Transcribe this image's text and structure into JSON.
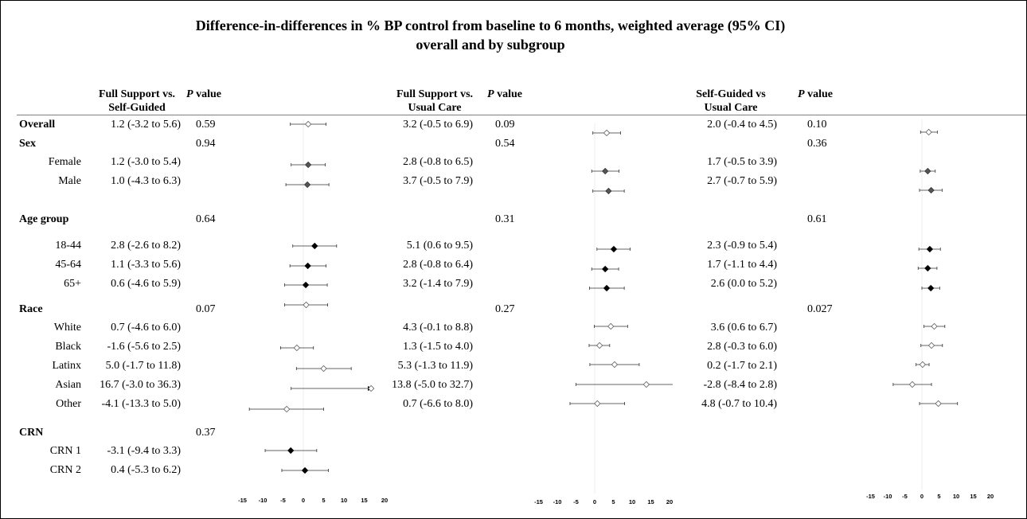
{
  "title_line1": "Difference-in-differences in % BP control from baseline to 6 months, weighted average (95% CI)",
  "title_line2": "overall and by subgroup",
  "columns": [
    {
      "header_line1": "Full Support vs.",
      "header_line2": "Self-Guided"
    },
    {
      "header_line1": "Full Support vs.",
      "header_line2": "Usual Care"
    },
    {
      "header_line1": "Self-Guided vs",
      "header_line2": "Usual Care"
    }
  ],
  "pvalue_header": {
    "italic": "P",
    "rest": " value"
  },
  "rows": [
    {
      "label": "Overall",
      "bold": true,
      "indent": false,
      "est": [
        "1.2 (-3.2 to 5.6)",
        "3.2 (-0.5 to 6.9)",
        "2.0 (-0.4  to 4.5)"
      ],
      "p": [
        "0.59",
        "0.09",
        "0.10"
      ]
    },
    {
      "label": "Sex",
      "bold": true,
      "indent": false,
      "est": [
        "",
        "",
        ""
      ],
      "p": [
        "0.94",
        "0.54",
        "0.36"
      ]
    },
    {
      "label": "Female",
      "bold": false,
      "indent": true,
      "est": [
        "1.2 (-3.0 to 5.4)",
        "2.8 (-0.8 to 6.5)",
        "1.7 (-0.5  to 3.9)"
      ],
      "p": [
        "",
        "",
        ""
      ]
    },
    {
      "label": "Male",
      "bold": false,
      "indent": true,
      "est": [
        "1.0 (-4.3 to 6.3)",
        "3.7 (-0.5 to 7.9)",
        "2.7 (-0.7  to 5.9)"
      ],
      "p": [
        "",
        "",
        ""
      ]
    },
    {
      "label": "Age group",
      "bold": true,
      "indent": false,
      "est": [
        "",
        "",
        ""
      ],
      "p": [
        "0.64",
        "0.31",
        "0.61"
      ]
    },
    {
      "label": "18-44",
      "bold": false,
      "indent": true,
      "est": [
        "2.8 (-2.6 to 8.2)",
        "5.1 (0.6 to 9.5)",
        "2.3 (-0.9  to 5.4)"
      ],
      "p": [
        "",
        "",
        ""
      ]
    },
    {
      "label": "45-64",
      "bold": false,
      "indent": true,
      "est": [
        "1.1 (-3.3 to 5.6)",
        "2.8 (-0.8 to 6.4)",
        "1.7 (-1.1  to 4.4)"
      ],
      "p": [
        "",
        "",
        ""
      ]
    },
    {
      "label": "65+",
      "bold": false,
      "indent": true,
      "est": [
        "0.6 (-4.6 to 5.9)",
        "3.2 (-1.4  to 7.9)",
        "2.6 (0.0  to 5.2)"
      ],
      "p": [
        "",
        "",
        ""
      ]
    },
    {
      "label": "Race",
      "bold": true,
      "indent": false,
      "est": [
        "",
        "",
        ""
      ],
      "p": [
        "0.07",
        "0.27",
        "0.027"
      ]
    },
    {
      "label": "White",
      "bold": false,
      "indent": true,
      "est": [
        "0.7 (-4.6 to 6.0)",
        "4.3 (-0.1  to 8.8)",
        "3.6 (0.6  to 6.7)"
      ],
      "p": [
        "",
        "",
        ""
      ]
    },
    {
      "label": "Black",
      "bold": false,
      "indent": true,
      "est": [
        "-1.6 (-5.6 to 2.5)",
        "1.3 (-1.5  to 4.0)",
        "2.8 (-0.3  to 6.0)"
      ],
      "p": [
        "",
        "",
        ""
      ]
    },
    {
      "label": "Latinx",
      "bold": false,
      "indent": true,
      "est": [
        "5.0 (-1.7 to 11.8)",
        "5.3 (-1.3  to 11.9)",
        "0.2 (-1.7  to 2.1)"
      ],
      "p": [
        "",
        "",
        ""
      ]
    },
    {
      "label": "Asian",
      "bold": false,
      "indent": true,
      "est": [
        "16.7 (-3.0 to 36.3)",
        "13.8 (-5.0 to 32.7)",
        "-2.8 (-8.4  to 2.8)"
      ],
      "p": [
        "",
        "",
        ""
      ]
    },
    {
      "label": "Other",
      "bold": false,
      "indent": true,
      "est": [
        "-4.1 (-13.3 to 5.0)",
        "0.7 (-6.6  to 8.0)",
        "4.8 (-0.7  to 10.4)"
      ],
      "p": [
        "",
        "",
        ""
      ]
    },
    {
      "label": "CRN",
      "bold": true,
      "indent": false,
      "est": [
        "",
        "",
        ""
      ],
      "p": [
        "0.37",
        "",
        ""
      ]
    },
    {
      "label": "CRN 1",
      "bold": false,
      "indent": true,
      "est": [
        "-3.1 (-9.4 to 3.3)",
        "",
        ""
      ],
      "p": [
        "",
        "",
        ""
      ]
    },
    {
      "label": "CRN 2",
      "bold": false,
      "indent": true,
      "est": [
        "0.4 (-5.3 to 6.2)",
        "",
        ""
      ],
      "p": [
        "",
        "",
        ""
      ]
    }
  ],
  "chart_data": [
    {
      "type": "forest",
      "comparison": "Full Support vs. Self-Guided",
      "xlim": [
        -15,
        20
      ],
      "xticks": [
        -15,
        -10,
        -5,
        0,
        5,
        10,
        15,
        20
      ],
      "points": [
        {
          "group": "Overall",
          "est": 1.2,
          "lo": -3.2,
          "hi": 5.6,
          "marker": "open"
        },
        {
          "group": "Female",
          "est": 1.2,
          "lo": -3.0,
          "hi": 5.4,
          "marker": "gray"
        },
        {
          "group": "Male",
          "est": 1.0,
          "lo": -4.3,
          "hi": 6.3,
          "marker": "gray"
        },
        {
          "group": "18-44",
          "est": 2.8,
          "lo": -2.6,
          "hi": 8.2,
          "marker": "filled"
        },
        {
          "group": "45-64",
          "est": 1.1,
          "lo": -3.3,
          "hi": 5.6,
          "marker": "filled"
        },
        {
          "group": "65+",
          "est": 0.6,
          "lo": -4.6,
          "hi": 5.9,
          "marker": "filled"
        },
        {
          "group": "White",
          "est": 0.7,
          "lo": -4.6,
          "hi": 6.0,
          "marker": "open"
        },
        {
          "group": "Black",
          "est": -1.6,
          "lo": -5.6,
          "hi": 2.5,
          "marker": "open"
        },
        {
          "group": "Latinx",
          "est": 5.0,
          "lo": -1.7,
          "hi": 11.8,
          "marker": "open"
        },
        {
          "group": "Asian",
          "est": 16.7,
          "lo": -3.0,
          "hi": 36.3,
          "marker": "open",
          "arrow": true
        },
        {
          "group": "Other",
          "est": -4.1,
          "lo": -13.3,
          "hi": 5.0,
          "marker": "open"
        },
        {
          "group": "CRN 1",
          "est": -3.1,
          "lo": -9.4,
          "hi": 3.3,
          "marker": "filled"
        },
        {
          "group": "CRN 2",
          "est": 0.4,
          "lo": -5.3,
          "hi": 6.2,
          "marker": "filled"
        }
      ]
    },
    {
      "type": "forest",
      "comparison": "Full Support vs. Usual Care",
      "xlim": [
        -15,
        20
      ],
      "xticks": [
        -15,
        -10,
        -5,
        0,
        5,
        10,
        15,
        20
      ],
      "points": [
        {
          "group": "Overall",
          "est": 3.2,
          "lo": -0.5,
          "hi": 6.9,
          "marker": "open"
        },
        {
          "group": "Female",
          "est": 2.8,
          "lo": -0.8,
          "hi": 6.5,
          "marker": "gray"
        },
        {
          "group": "Male",
          "est": 3.7,
          "lo": -0.5,
          "hi": 7.9,
          "marker": "gray"
        },
        {
          "group": "18-44",
          "est": 5.1,
          "lo": 0.6,
          "hi": 9.5,
          "marker": "filled"
        },
        {
          "group": "45-64",
          "est": 2.8,
          "lo": -0.8,
          "hi": 6.4,
          "marker": "filled"
        },
        {
          "group": "65+",
          "est": 3.2,
          "lo": -1.4,
          "hi": 7.9,
          "marker": "filled"
        },
        {
          "group": "White",
          "est": 4.3,
          "lo": -0.1,
          "hi": 8.8,
          "marker": "open"
        },
        {
          "group": "Black",
          "est": 1.3,
          "lo": -1.5,
          "hi": 4.0,
          "marker": "open"
        },
        {
          "group": "Latinx",
          "est": 5.3,
          "lo": -1.3,
          "hi": 11.9,
          "marker": "open"
        },
        {
          "group": "Asian",
          "est": 13.8,
          "lo": -5.0,
          "hi": 32.7,
          "marker": "open"
        },
        {
          "group": "Other",
          "est": 0.7,
          "lo": -6.6,
          "hi": 8.0,
          "marker": "open"
        }
      ]
    },
    {
      "type": "forest",
      "comparison": "Self-Guided vs Usual Care",
      "xlim": [
        -15,
        20
      ],
      "xticks": [
        -15,
        -10,
        -5,
        0,
        5,
        10,
        15,
        20
      ],
      "points": [
        {
          "group": "Overall",
          "est": 2.0,
          "lo": -0.4,
          "hi": 4.5,
          "marker": "open"
        },
        {
          "group": "Female",
          "est": 1.7,
          "lo": -0.5,
          "hi": 3.9,
          "marker": "gray"
        },
        {
          "group": "Male",
          "est": 2.7,
          "lo": -0.7,
          "hi": 5.9,
          "marker": "gray"
        },
        {
          "group": "18-44",
          "est": 2.3,
          "lo": -0.9,
          "hi": 5.4,
          "marker": "filled"
        },
        {
          "group": "45-64",
          "est": 1.7,
          "lo": -1.1,
          "hi": 4.4,
          "marker": "filled"
        },
        {
          "group": "65+",
          "est": 2.6,
          "lo": 0.0,
          "hi": 5.2,
          "marker": "filled"
        },
        {
          "group": "White",
          "est": 3.6,
          "lo": 0.6,
          "hi": 6.7,
          "marker": "open"
        },
        {
          "group": "Black",
          "est": 2.8,
          "lo": -0.3,
          "hi": 6.0,
          "marker": "open"
        },
        {
          "group": "Latinx",
          "est": 0.2,
          "lo": -1.7,
          "hi": 2.1,
          "marker": "open"
        },
        {
          "group": "Asian",
          "est": -2.8,
          "lo": -8.4,
          "hi": 2.8,
          "marker": "open"
        },
        {
          "group": "Other",
          "est": 4.8,
          "lo": -0.7,
          "hi": 10.4,
          "marker": "open"
        }
      ]
    }
  ]
}
